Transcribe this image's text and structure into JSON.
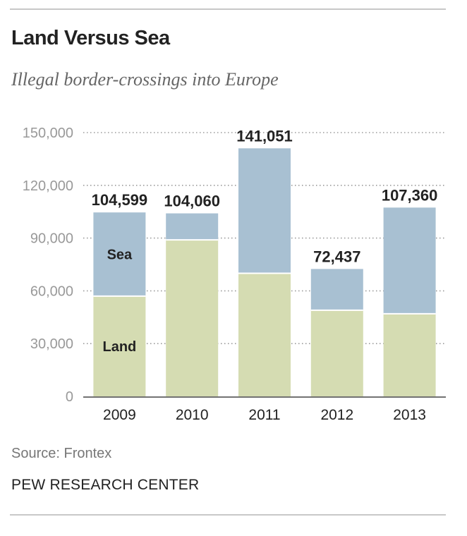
{
  "chart_data": {
    "type": "bar",
    "stacked": true,
    "title": "Land Versus Sea",
    "subtitle": "Illegal border-crossings into Europe",
    "categories": [
      "2009",
      "2010",
      "2011",
      "2012",
      "2013"
    ],
    "series": [
      {
        "name": "Land",
        "values": [
          57000,
          89000,
          70000,
          49000,
          47000
        ],
        "color": "#d5dcb2"
      },
      {
        "name": "Sea",
        "values": [
          47599,
          15060,
          71051,
          23437,
          60360
        ],
        "color": "#a8c0d2"
      }
    ],
    "totals": [
      104599,
      104060,
      141051,
      72437,
      107360
    ],
    "total_labels": [
      "104,599",
      "104,060",
      "141,051",
      "72,437",
      "107,360"
    ],
    "y_ticks": [
      0,
      30000,
      60000,
      90000,
      120000,
      150000
    ],
    "y_tick_labels": [
      "0",
      "30,000",
      "60,000",
      "90,000",
      "120,000",
      "150,000"
    ],
    "ylim": [
      0,
      150000
    ],
    "grid": true,
    "legend": "inline-first-bar",
    "xlabel": "",
    "ylabel": ""
  },
  "source_text": "Source: Frontex",
  "org_text": "PEW RESEARCH CENTER"
}
